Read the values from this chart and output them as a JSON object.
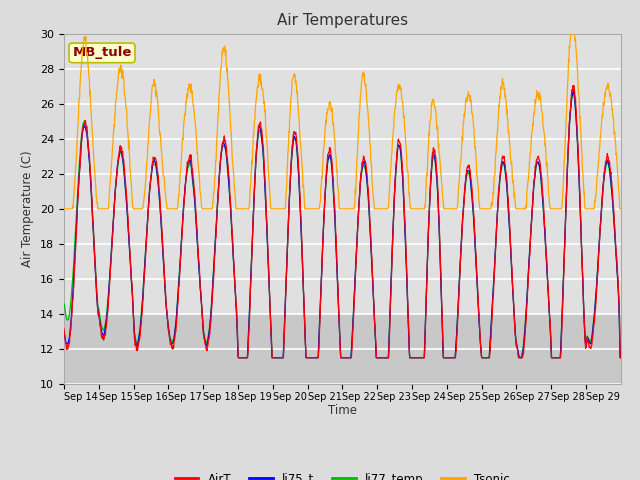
{
  "title": "Air Temperatures",
  "ylabel": "Air Temperature (C)",
  "xlabel": "Time",
  "annotation": "MB_tule",
  "ylim": [
    10,
    30
  ],
  "series_colors": {
    "AirT": "#FF0000",
    "li75_t": "#0000FF",
    "li77_temp": "#00BB00",
    "Tsonic": "#FFA500"
  },
  "x_tick_labels": [
    "Sep 14",
    "Sep 15",
    "Sep 16",
    "Sep 17",
    "Sep 18",
    "Sep 19",
    "Sep 20",
    "Sep 21",
    "Sep 22",
    "Sep 23",
    "Sep 24",
    "Sep 25",
    "Sep 26",
    "Sep 27",
    "Sep 28",
    "Sep 29"
  ],
  "bg_color": "#DCDCDC",
  "plot_bg_color": "#E0E0E0",
  "grid_color": "#FFFFFF",
  "shade_below_color": "#C8C8C8",
  "shade_below_value": 14,
  "n_days": 16,
  "points_per_day": 96
}
